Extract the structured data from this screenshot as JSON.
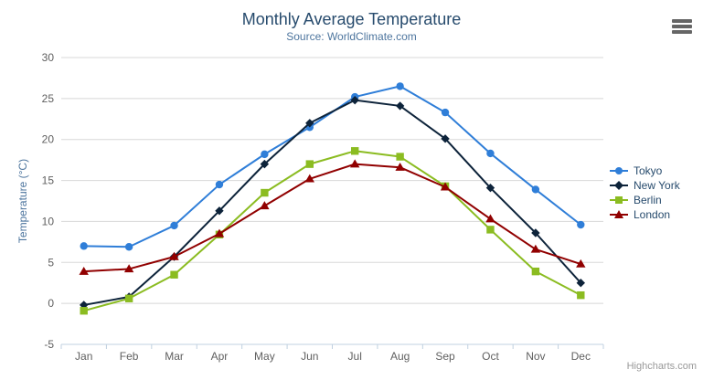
{
  "chart_data": {
    "type": "line",
    "title": "Monthly Average Temperature",
    "subtitle": "Source: WorldClimate.com",
    "xlabel": "",
    "ylabel": "Temperature (°C)",
    "categories": [
      "Jan",
      "Feb",
      "Mar",
      "Apr",
      "May",
      "Jun",
      "Jul",
      "Aug",
      "Sep",
      "Oct",
      "Nov",
      "Dec"
    ],
    "series": [
      {
        "name": "Tokyo",
        "color": "#2f7ed8",
        "marker": "circle",
        "values": [
          7.0,
          6.9,
          9.5,
          14.5,
          18.2,
          21.5,
          25.2,
          26.5,
          23.3,
          18.3,
          13.9,
          9.6
        ]
      },
      {
        "name": "New York",
        "color": "#0d233a",
        "marker": "diamond",
        "values": [
          -0.2,
          0.8,
          5.7,
          11.3,
          17.0,
          22.0,
          24.8,
          24.1,
          20.1,
          14.1,
          8.6,
          2.5
        ]
      },
      {
        "name": "Berlin",
        "color": "#8bbc21",
        "marker": "square",
        "values": [
          -0.9,
          0.6,
          3.5,
          8.4,
          13.5,
          17.0,
          18.6,
          17.9,
          14.3,
          9.0,
          3.9,
          1.0
        ]
      },
      {
        "name": "London",
        "color": "#910000",
        "marker": "triangle",
        "values": [
          3.9,
          4.2,
          5.7,
          8.5,
          11.9,
          15.2,
          17.0,
          16.6,
          14.2,
          10.3,
          6.6,
          4.8
        ]
      }
    ],
    "ylim": [
      -5,
      30
    ],
    "ytick_interval": 5,
    "grid": true,
    "legend_position": "right"
  },
  "credits": {
    "label": "Highcharts.com"
  },
  "style": {
    "title_color": "#274b6d",
    "subtitle_color": "#4d759e",
    "axis_label_color": "#606060",
    "axis_title_color": "#4d759e",
    "grid_color": "#d8d8d8",
    "axis_line_color": "#c0d0e0",
    "legend_text_color": "#274b6d",
    "credits_color": "#999999",
    "menu_icon_color": "#666666",
    "background": "#ffffff"
  }
}
